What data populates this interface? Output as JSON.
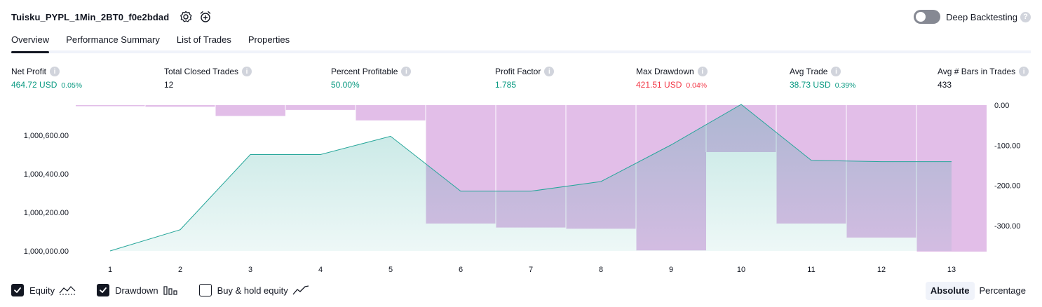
{
  "header": {
    "title": "Tuisku_PYPL_1Min_2BT0_f0e2bdad",
    "settings_icon": "gear-icon",
    "alert_icon": "alarm-clock-plus-icon"
  },
  "deep_backtesting": {
    "label": "Deep Backtesting",
    "enabled": false,
    "help": "?"
  },
  "tabs": [
    {
      "label": "Overview",
      "active": true
    },
    {
      "label": "Performance Summary",
      "active": false
    },
    {
      "label": "List of Trades",
      "active": false
    },
    {
      "label": "Properties",
      "active": false
    }
  ],
  "metrics": [
    {
      "label": "Net Profit",
      "value": "464.72 USD",
      "pct": "0.05%",
      "color": "green"
    },
    {
      "label": "Total Closed Trades",
      "value": "12",
      "pct": "",
      "color": "dark"
    },
    {
      "label": "Percent Profitable",
      "value": "50.00%",
      "pct": "",
      "color": "green"
    },
    {
      "label": "Profit Factor",
      "value": "1.785",
      "pct": "",
      "color": "green"
    },
    {
      "label": "Max Drawdown",
      "value": "421.51 USD",
      "pct": "0.04%",
      "color": "red"
    },
    {
      "label": "Avg Trade",
      "value": "38.73 USD",
      "pct": "0.39%",
      "color": "green"
    },
    {
      "label": "Avg # Bars in Trades",
      "value": "433",
      "pct": "",
      "color": "dark"
    }
  ],
  "chart_data": {
    "type": "line",
    "x": [
      1,
      2,
      3,
      4,
      5,
      6,
      7,
      8,
      9,
      10,
      11,
      12,
      13
    ],
    "series": [
      {
        "name": "Equity",
        "type": "area",
        "axis": "left",
        "color": "#26a69a",
        "values": [
          1000000,
          1000110,
          1000500,
          1000500,
          1000595,
          1000310,
          1000310,
          1000360,
          1000550,
          1000760,
          1000470,
          1000463,
          1000463
        ]
      },
      {
        "name": "Drawdown",
        "type": "bar",
        "axis": "right",
        "color": "#ce93d8",
        "values": [
          0,
          -4,
          -27,
          -12,
          -38,
          -295,
          -305,
          -308,
          -362,
          -117,
          -295,
          -330,
          -365
        ],
        "extension": -365
      }
    ],
    "left_axis": {
      "ticks": [
        "1,000,000.00",
        "1,000,200.00",
        "1,000,400.00",
        "1,000,600.00"
      ],
      "tick_values": [
        1000000,
        1000200,
        1000400,
        1000600
      ]
    },
    "right_axis": {
      "ticks": [
        "0.00",
        "-100.00",
        "-200.00",
        "-300.00"
      ],
      "tick_values": [
        0,
        -100,
        -200,
        -300
      ]
    },
    "x_ticks": [
      "1",
      "2",
      "3",
      "4",
      "5",
      "6",
      "7",
      "8",
      "9",
      "10",
      "11",
      "12",
      "13"
    ]
  },
  "legend": [
    {
      "label": "Equity",
      "checked": true,
      "icon": "equity-line-icon"
    },
    {
      "label": "Drawdown",
      "checked": true,
      "icon": "drawdown-bars-icon"
    },
    {
      "label": "Buy & hold equity",
      "checked": false,
      "icon": "buy-hold-line-icon"
    }
  ],
  "mode": {
    "options": [
      "Absolute",
      "Percentage"
    ],
    "selected": "Absolute"
  }
}
